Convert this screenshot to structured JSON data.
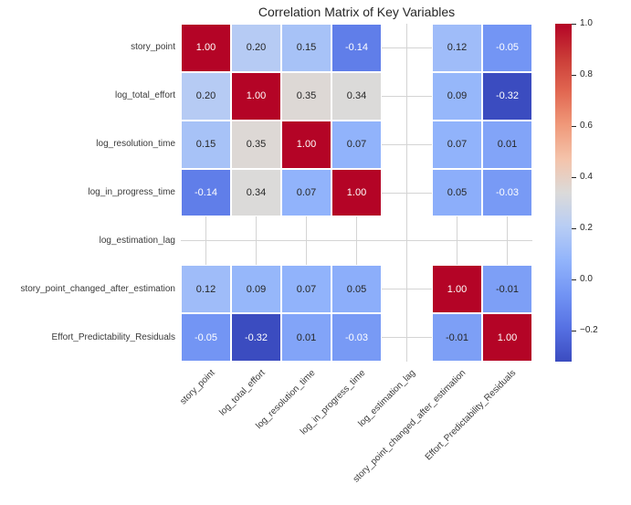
{
  "title": "Correlation Matrix of Key Variables",
  "chart_data": {
    "type": "heatmap",
    "title": "Correlation Matrix of Key Variables",
    "variables": [
      "story_point",
      "log_total_effort",
      "log_resolution_time",
      "log_in_progress_time",
      "log_estimation_lag",
      "story_point_changed_after_estimation",
      "Effort_Predictability_Residuals"
    ],
    "matrix": [
      [
        1.0,
        0.2,
        0.15,
        -0.14,
        null,
        0.12,
        -0.05
      ],
      [
        0.2,
        1.0,
        0.35,
        0.34,
        null,
        0.09,
        -0.32
      ],
      [
        0.15,
        0.35,
        1.0,
        0.07,
        null,
        0.07,
        0.01
      ],
      [
        -0.14,
        0.34,
        0.07,
        1.0,
        null,
        0.05,
        -0.03
      ],
      [
        null,
        null,
        null,
        null,
        null,
        null,
        null
      ],
      [
        0.12,
        0.09,
        0.07,
        0.05,
        null,
        1.0,
        -0.01
      ],
      [
        -0.05,
        -0.32,
        0.01,
        -0.03,
        null,
        -0.01,
        1.0
      ]
    ],
    "annotation_decimals": 2,
    "colormap": "coolwarm",
    "vmin": -0.32,
    "vmax": 1.0,
    "colorbar_tick_values": [
      1.0,
      0.8,
      0.6,
      0.4,
      0.2,
      0.0,
      -0.2
    ],
    "colorbar_tick_labels": [
      "1.0",
      "0.8",
      "0.6",
      "0.4",
      "0.2",
      "0.0",
      "−0.2"
    ],
    "legend_position": "right",
    "grid": true
  },
  "colors": {
    "background": "#ffffff",
    "title_text": "#262626",
    "tick_label_text": "#3a3a3a",
    "annotation_text_dark": "#262626",
    "annotation_text_light": "#ffffff",
    "grid_line": "#d4d4d4",
    "cell_separator": "#ffffff",
    "colormap_anchors": [
      {
        "t": 0.0,
        "hex": "#3b4cc0"
      },
      {
        "t": 0.1,
        "hex": "#5671e3"
      },
      {
        "t": 0.2,
        "hex": "#7294f4"
      },
      {
        "t": 0.3,
        "hex": "#92b4fb"
      },
      {
        "t": 0.4,
        "hex": "#b8cdf4"
      },
      {
        "t": 0.5,
        "hex": "#dbdad9"
      },
      {
        "t": 0.6,
        "hex": "#f4c3aa"
      },
      {
        "t": 0.7,
        "hex": "#f0997a"
      },
      {
        "t": 0.8,
        "hex": "#e16751"
      },
      {
        "t": 0.9,
        "hex": "#ca3b37"
      },
      {
        "t": 1.0,
        "hex": "#b40426"
      }
    ]
  }
}
